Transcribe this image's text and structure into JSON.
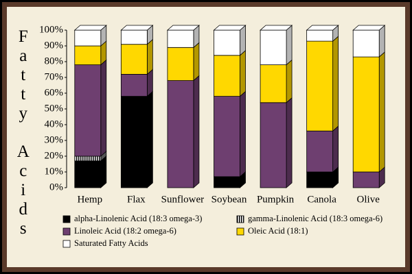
{
  "chart_data": {
    "type": "stacked_bar_3d",
    "y_label": "Fatty Acids",
    "categories": [
      "Hemp",
      "Flax",
      "Sunflower",
      "Soybean",
      "Pumpkin",
      "Canola",
      "Olive"
    ],
    "series": [
      {
        "name": "alpha-Linolenic Acid (18:3 omega-3)",
        "color": "#000000",
        "values": [
          17,
          58,
          0,
          7,
          0,
          10,
          0
        ]
      },
      {
        "name": "gamma-Linolenic Acid (18:3 omega-6)",
        "color": "#ffffff",
        "pattern": "vertical-stripes",
        "values": [
          3,
          0,
          0,
          0,
          0,
          0,
          0
        ]
      },
      {
        "name": "Linoleic Acid (18:2 omega-6)",
        "color": "#6e3f70",
        "values": [
          58,
          14,
          68,
          51,
          54,
          26,
          10
        ]
      },
      {
        "name": "Oleic Acid (18:1)",
        "color": "#ffd800",
        "values": [
          12,
          19,
          21,
          26,
          24,
          57,
          73
        ]
      },
      {
        "name": "Saturated Fatty Acids",
        "color": "#ffffff",
        "values": [
          10,
          9,
          11,
          16,
          22,
          7,
          17
        ]
      }
    ],
    "ylim": [
      0,
      100
    ],
    "yticks": [
      {
        "value": 0,
        "label": "0%"
      },
      {
        "value": 10,
        "label": "10%"
      },
      {
        "value": 20,
        "label": "20%"
      },
      {
        "value": 30,
        "label": "30%"
      },
      {
        "value": 40,
        "label": "40%"
      },
      {
        "value": 50,
        "label": "50%"
      },
      {
        "value": 60,
        "label": "60%"
      },
      {
        "value": 70,
        "label": "70%"
      },
      {
        "value": 80,
        "label": "80%"
      },
      {
        "value": 90,
        "label": "90%"
      },
      {
        "value": 100,
        "label": "100%"
      }
    ],
    "grid": false
  }
}
